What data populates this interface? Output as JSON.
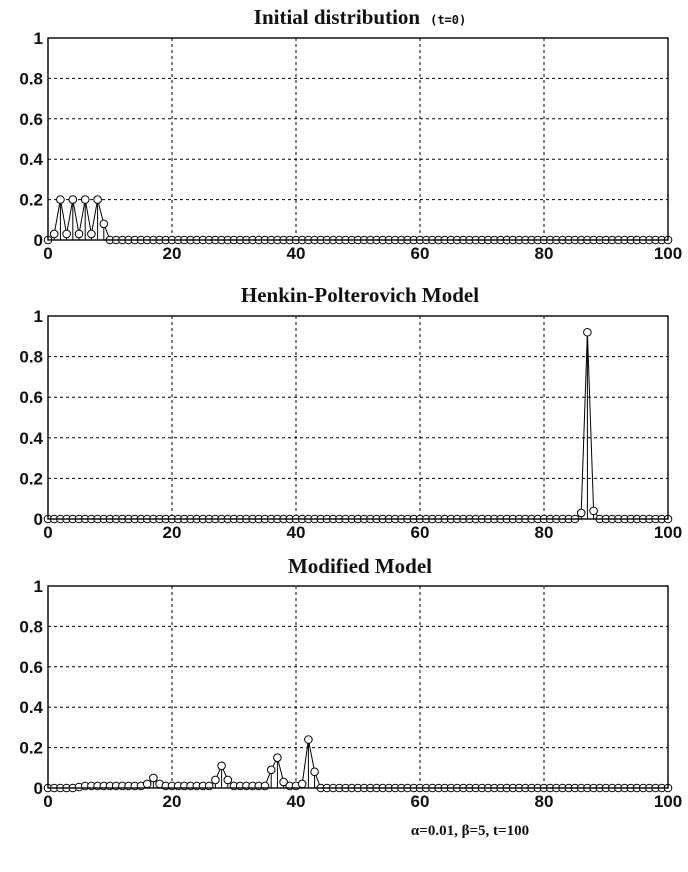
{
  "chart_data": [
    {
      "type": "stem",
      "title": "Initial distribution",
      "title_note": "(t=0)",
      "xlim": [
        0,
        100
      ],
      "ylim": [
        0,
        1
      ],
      "xticks": [
        "0",
        "20",
        "40",
        "60",
        "80",
        "100"
      ],
      "yticks": [
        "0",
        "0.2",
        "0.4",
        "0.6",
        "0.8",
        "1"
      ],
      "grid": true,
      "series": [
        {
          "x": [
            1,
            2,
            3,
            4,
            5,
            6,
            7,
            8,
            9
          ],
          "y": [
            0.03,
            0.2,
            0.03,
            0.2,
            0.03,
            0.2,
            0.03,
            0.2,
            0.08
          ]
        }
      ]
    },
    {
      "type": "stem",
      "title": "Henkin-Polterovich Model",
      "xlim": [
        0,
        100
      ],
      "ylim": [
        0,
        1
      ],
      "xticks": [
        "0",
        "20",
        "40",
        "60",
        "80",
        "100"
      ],
      "yticks": [
        "0",
        "0.2",
        "0.4",
        "0.6",
        "0.8",
        "1"
      ],
      "grid": true,
      "series": [
        {
          "x": [
            86,
            87,
            88
          ],
          "y": [
            0.03,
            0.92,
            0.04
          ]
        }
      ]
    },
    {
      "type": "stem",
      "title": "Modified Model",
      "xlim": [
        0,
        100
      ],
      "ylim": [
        0,
        1
      ],
      "xticks": [
        "0",
        "20",
        "40",
        "60",
        "80",
        "100"
      ],
      "yticks": [
        "0",
        "0.2",
        "0.4",
        "0.6",
        "0.8",
        "1"
      ],
      "grid": true,
      "series": [
        {
          "x": [
            5,
            6,
            7,
            8,
            9,
            10,
            11,
            12,
            13,
            14,
            15,
            16,
            17,
            18,
            19,
            20,
            21,
            22,
            23,
            24,
            25,
            26,
            27,
            28,
            29,
            30,
            31,
            32,
            33,
            34,
            35,
            36,
            37,
            38,
            39,
            40,
            41,
            42,
            43
          ],
          "y": [
            0.005,
            0.01,
            0.01,
            0.01,
            0.01,
            0.01,
            0.01,
            0.01,
            0.01,
            0.01,
            0.01,
            0.02,
            0.05,
            0.02,
            0.01,
            0.01,
            0.01,
            0.01,
            0.01,
            0.01,
            0.01,
            0.01,
            0.04,
            0.11,
            0.04,
            0.01,
            0.01,
            0.01,
            0.01,
            0.01,
            0.01,
            0.09,
            0.15,
            0.03,
            0.01,
            0.01,
            0.02,
            0.24,
            0.08
          ]
        }
      ]
    }
  ],
  "footnote": "α=0.01, β=5, t=100"
}
